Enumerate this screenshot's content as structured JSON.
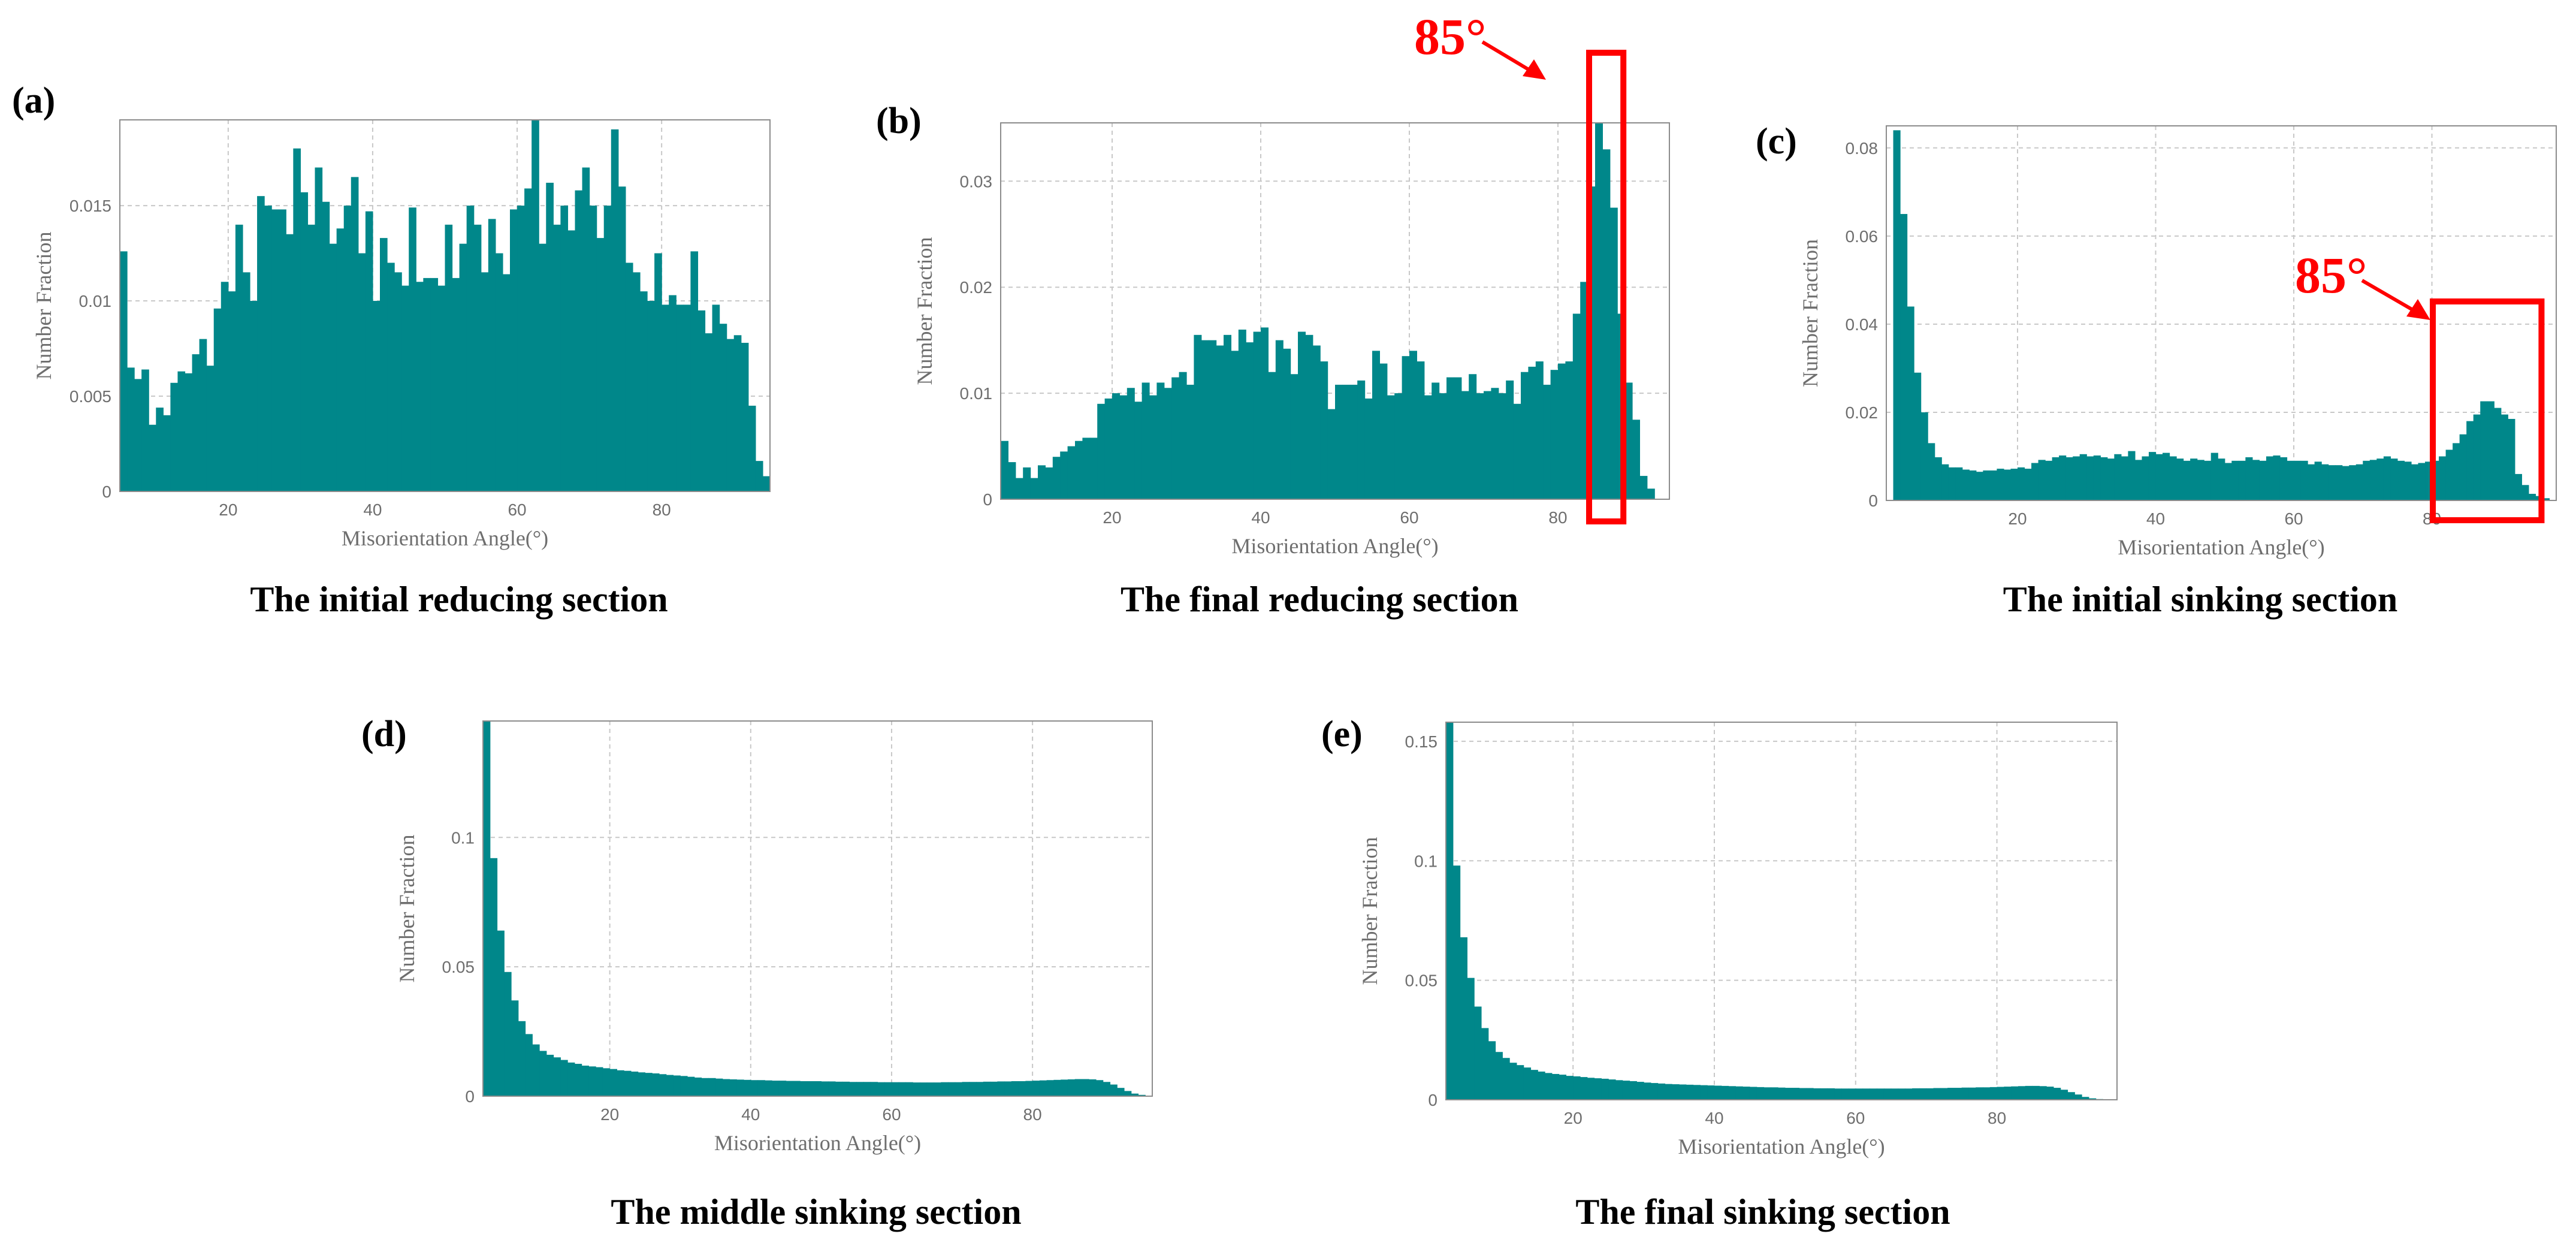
{
  "figure": {
    "panels": [
      {
        "letter": "(a)",
        "caption": "The initial reducing section"
      },
      {
        "letter": "(b)",
        "caption": "The final reducing section",
        "annotation": "85°"
      },
      {
        "letter": "(c)",
        "caption": "The initial sinking section",
        "annotation": "85°"
      },
      {
        "letter": "(d)",
        "caption": "The middle sinking section"
      },
      {
        "letter": "(e)",
        "caption": "The final sinking section"
      }
    ]
  },
  "colors": {
    "bar": "#00878A",
    "highlight": "#FF0000",
    "grid": "#C8C8C8",
    "axis_text": "#6E6E6E"
  },
  "chart_data": [
    {
      "type": "bar",
      "xlabel": "Misorientation Angle(°)",
      "ylabel": "Number Fraction",
      "xlim": [
        5,
        95
      ],
      "ylim": [
        0,
        0.0195
      ],
      "xticks": [
        20,
        40,
        60,
        80
      ],
      "xtick_labels": [
        "20",
        "40",
        "60",
        "80"
      ],
      "yticks": [
        0,
        0.005,
        0.01,
        0.015
      ],
      "ytick_labels": [
        "0",
        "0.005",
        "0.01",
        "0.015"
      ],
      "grid": true,
      "x": [
        5,
        6,
        7,
        8,
        9,
        10,
        11,
        12,
        13,
        14,
        15,
        16,
        17,
        18,
        19,
        20,
        21,
        22,
        23,
        24,
        25,
        26,
        27,
        28,
        29,
        30,
        31,
        32,
        33,
        34,
        35,
        36,
        37,
        38,
        39,
        40,
        41,
        42,
        43,
        44,
        45,
        46,
        47,
        48,
        49,
        50,
        51,
        52,
        53,
        54,
        55,
        56,
        57,
        58,
        59,
        60,
        61,
        62,
        63,
        64,
        65,
        66,
        67,
        68,
        69,
        70,
        71,
        72,
        73,
        74,
        75,
        76,
        77,
        78,
        79,
        80,
        81,
        82,
        83,
        84,
        85,
        86,
        87,
        88,
        89,
        90,
        91,
        92,
        93,
        94
      ],
      "values": [
        0.0126,
        0.0065,
        0.0059,
        0.0064,
        0.0035,
        0.0044,
        0.004,
        0.0057,
        0.0063,
        0.0062,
        0.0072,
        0.008,
        0.0066,
        0.0096,
        0.011,
        0.0105,
        0.014,
        0.0115,
        0.01,
        0.0155,
        0.015,
        0.0148,
        0.0148,
        0.0135,
        0.018,
        0.0157,
        0.014,
        0.017,
        0.0152,
        0.013,
        0.0138,
        0.015,
        0.0165,
        0.0125,
        0.0147,
        0.01,
        0.0133,
        0.012,
        0.0115,
        0.0108,
        0.0149,
        0.011,
        0.0112,
        0.0112,
        0.0108,
        0.014,
        0.0112,
        0.013,
        0.015,
        0.014,
        0.0115,
        0.0143,
        0.0125,
        0.0114,
        0.0148,
        0.015,
        0.0159,
        0.0195,
        0.013,
        0.0162,
        0.014,
        0.015,
        0.0137,
        0.0158,
        0.017,
        0.015,
        0.0133,
        0.015,
        0.019,
        0.016,
        0.012,
        0.0115,
        0.0105,
        0.01,
        0.0125,
        0.0098,
        0.0103,
        0.0098,
        0.0098,
        0.0126,
        0.0095,
        0.0083,
        0.0098,
        0.0088,
        0.008,
        0.0082,
        0.0078,
        0.0045,
        0.0016,
        0.0008
      ]
    },
    {
      "type": "bar",
      "xlabel": "Misorientation Angle(°)",
      "ylabel": "Number Fraction",
      "xlim": [
        5,
        95
      ],
      "ylim": [
        0,
        0.0355
      ],
      "xticks": [
        20,
        40,
        60,
        80
      ],
      "xtick_labels": [
        "20",
        "40",
        "60",
        "80"
      ],
      "yticks": [
        0,
        0.01,
        0.02,
        0.03
      ],
      "ytick_labels": [
        "0",
        "0.01",
        "0.02",
        "0.03"
      ],
      "grid": true,
      "highlight_x_range": [
        85,
        87
      ],
      "x": [
        5,
        6,
        7,
        8,
        9,
        10,
        11,
        12,
        13,
        14,
        15,
        16,
        17,
        18,
        19,
        20,
        21,
        22,
        23,
        24,
        25,
        26,
        27,
        28,
        29,
        30,
        31,
        32,
        33,
        34,
        35,
        36,
        37,
        38,
        39,
        40,
        41,
        42,
        43,
        44,
        45,
        46,
        47,
        48,
        49,
        50,
        51,
        52,
        53,
        54,
        55,
        56,
        57,
        58,
        59,
        60,
        61,
        62,
        63,
        64,
        65,
        66,
        67,
        68,
        69,
        70,
        71,
        72,
        73,
        74,
        75,
        76,
        77,
        78,
        79,
        80,
        81,
        82,
        83,
        84,
        85,
        86,
        87,
        88,
        89,
        90,
        91,
        92,
        93,
        94
      ],
      "values": [
        0.0055,
        0.0035,
        0.002,
        0.003,
        0.002,
        0.0032,
        0.003,
        0.004,
        0.0045,
        0.005,
        0.0055,
        0.0058,
        0.0058,
        0.009,
        0.0095,
        0.01,
        0.0098,
        0.0105,
        0.0092,
        0.011,
        0.0098,
        0.011,
        0.0105,
        0.0115,
        0.012,
        0.0108,
        0.0155,
        0.015,
        0.015,
        0.0145,
        0.0155,
        0.014,
        0.016,
        0.0148,
        0.0158,
        0.0162,
        0.012,
        0.015,
        0.0142,
        0.0118,
        0.0158,
        0.0155,
        0.0145,
        0.013,
        0.0085,
        0.0108,
        0.0108,
        0.0108,
        0.0112,
        0.0095,
        0.014,
        0.0128,
        0.0098,
        0.01,
        0.0135,
        0.014,
        0.013,
        0.0098,
        0.011,
        0.01,
        0.0115,
        0.0115,
        0.0102,
        0.0118,
        0.01,
        0.0102,
        0.0105,
        0.01,
        0.0112,
        0.009,
        0.012,
        0.0125,
        0.013,
        0.0108,
        0.0122,
        0.0128,
        0.013,
        0.0175,
        0.0205,
        0.0295,
        0.0355,
        0.033,
        0.0275,
        0.0175,
        0.011,
        0.0075,
        0.0022,
        0.001,
        0,
        0
      ]
    },
    {
      "type": "bar",
      "xlabel": "Misorientation Angle(°)",
      "ylabel": "Number Fraction",
      "xlim": [
        1,
        98
      ],
      "ylim": [
        0,
        0.085
      ],
      "xticks": [
        20,
        40,
        60,
        80
      ],
      "xtick_labels": [
        "20",
        "40",
        "60",
        "80"
      ],
      "yticks": [
        0,
        0.02,
        0.04,
        0.06,
        0.08
      ],
      "ytick_labels": [
        "0",
        "0.02",
        "0.04",
        "0.06",
        "0.08"
      ],
      "grid": true,
      "highlight_x_range": [
        81,
        94
      ],
      "x": [
        2,
        3,
        4,
        5,
        6,
        7,
        8,
        9,
        10,
        11,
        12,
        13,
        14,
        15,
        16,
        17,
        18,
        19,
        20,
        21,
        22,
        23,
        24,
        25,
        26,
        27,
        28,
        29,
        30,
        31,
        32,
        33,
        34,
        35,
        36,
        37,
        38,
        39,
        40,
        41,
        42,
        43,
        44,
        45,
        46,
        47,
        48,
        49,
        50,
        51,
        52,
        53,
        54,
        55,
        56,
        57,
        58,
        59,
        60,
        61,
        62,
        63,
        64,
        65,
        66,
        67,
        68,
        69,
        70,
        71,
        72,
        73,
        74,
        75,
        76,
        77,
        78,
        79,
        80,
        81,
        82,
        83,
        84,
        85,
        86,
        87,
        88,
        89,
        90,
        91,
        92,
        93,
        94,
        95,
        96
      ],
      "values": [
        0.084,
        0.065,
        0.044,
        0.029,
        0.02,
        0.013,
        0.0098,
        0.0082,
        0.0075,
        0.0075,
        0.007,
        0.0068,
        0.0065,
        0.0068,
        0.0068,
        0.0072,
        0.007,
        0.0072,
        0.0075,
        0.0072,
        0.0085,
        0.0092,
        0.009,
        0.0098,
        0.0102,
        0.0098,
        0.01,
        0.0105,
        0.01,
        0.0102,
        0.0098,
        0.0095,
        0.0105,
        0.01,
        0.0112,
        0.0092,
        0.01,
        0.011,
        0.0105,
        0.0108,
        0.01,
        0.0095,
        0.009,
        0.0095,
        0.0092,
        0.009,
        0.0108,
        0.0095,
        0.0085,
        0.009,
        0.009,
        0.0098,
        0.0092,
        0.009,
        0.01,
        0.0102,
        0.0098,
        0.009,
        0.009,
        0.009,
        0.0082,
        0.0088,
        0.0082,
        0.008,
        0.008,
        0.0078,
        0.008,
        0.0082,
        0.009,
        0.0092,
        0.0095,
        0.01,
        0.0095,
        0.009,
        0.0088,
        0.0082,
        0.0085,
        0.0088,
        0.009,
        0.01,
        0.0115,
        0.013,
        0.015,
        0.018,
        0.0195,
        0.0225,
        0.0225,
        0.021,
        0.0195,
        0.0185,
        0.006,
        0.0035,
        0.0015,
        0.001,
        0.0005
      ]
    },
    {
      "type": "bar",
      "xlabel": "Misorientation Angle(°)",
      "ylabel": "Number Fraction",
      "xlim": [
        2,
        97
      ],
      "ylim": [
        0,
        0.145
      ],
      "xticks": [
        20,
        40,
        60,
        80
      ],
      "xtick_labels": [
        "20",
        "40",
        "60",
        "80"
      ],
      "yticks": [
        0,
        0.05,
        0.1
      ],
      "ytick_labels": [
        "0",
        "0.05",
        "0.1"
      ],
      "grid": true,
      "x": [
        2,
        3,
        4,
        5,
        6,
        7,
        8,
        9,
        10,
        11,
        12,
        13,
        14,
        15,
        16,
        17,
        18,
        19,
        20,
        21,
        22,
        23,
        24,
        25,
        26,
        27,
        28,
        29,
        30,
        31,
        32,
        33,
        34,
        35,
        36,
        37,
        38,
        39,
        40,
        41,
        42,
        43,
        44,
        45,
        46,
        47,
        48,
        49,
        50,
        51,
        52,
        53,
        54,
        55,
        56,
        57,
        58,
        59,
        60,
        61,
        62,
        63,
        64,
        65,
        66,
        67,
        68,
        69,
        70,
        71,
        72,
        73,
        74,
        75,
        76,
        77,
        78,
        79,
        80,
        81,
        82,
        83,
        84,
        85,
        86,
        87,
        88,
        89,
        90,
        91,
        92,
        93,
        94,
        95
      ],
      "values": [
        0.145,
        0.092,
        0.064,
        0.048,
        0.037,
        0.029,
        0.024,
        0.02,
        0.0175,
        0.016,
        0.015,
        0.014,
        0.013,
        0.0125,
        0.0118,
        0.0115,
        0.0112,
        0.0108,
        0.0105,
        0.01,
        0.0098,
        0.0095,
        0.0092,
        0.009,
        0.0088,
        0.0085,
        0.0082,
        0.008,
        0.0078,
        0.0075,
        0.0072,
        0.007,
        0.007,
        0.0068,
        0.0066,
        0.0065,
        0.0064,
        0.0063,
        0.0062,
        0.0062,
        0.0061,
        0.006,
        0.006,
        0.0059,
        0.0059,
        0.0058,
        0.0058,
        0.0058,
        0.0057,
        0.0057,
        0.0056,
        0.0056,
        0.0055,
        0.0055,
        0.0055,
        0.0055,
        0.0054,
        0.0054,
        0.0054,
        0.0054,
        0.0054,
        0.0053,
        0.0053,
        0.0053,
        0.0053,
        0.0054,
        0.0054,
        0.0054,
        0.0055,
        0.0055,
        0.0055,
        0.0056,
        0.0056,
        0.0057,
        0.0057,
        0.0058,
        0.0058,
        0.0059,
        0.006,
        0.0061,
        0.0062,
        0.0063,
        0.0064,
        0.0065,
        0.0066,
        0.0066,
        0.0065,
        0.0062,
        0.0055,
        0.0045,
        0.0032,
        0.002,
        0.001,
        0.0005
      ]
    },
    {
      "type": "bar",
      "xlabel": "Misorientation Angle(°)",
      "ylabel": "Number Fraction",
      "xlim": [
        2,
        97
      ],
      "ylim": [
        0,
        0.158
      ],
      "xticks": [
        20,
        40,
        60,
        80
      ],
      "xtick_labels": [
        "20",
        "40",
        "60",
        "80"
      ],
      "yticks": [
        0,
        0.05,
        0.1,
        0.15
      ],
      "ytick_labels": [
        "0",
        "0.05",
        "0.1",
        "0.15"
      ],
      "grid": true,
      "x": [
        2,
        3,
        4,
        5,
        6,
        7,
        8,
        9,
        10,
        11,
        12,
        13,
        14,
        15,
        16,
        17,
        18,
        19,
        20,
        21,
        22,
        23,
        24,
        25,
        26,
        27,
        28,
        29,
        30,
        31,
        32,
        33,
        34,
        35,
        36,
        37,
        38,
        39,
        40,
        41,
        42,
        43,
        44,
        45,
        46,
        47,
        48,
        49,
        50,
        51,
        52,
        53,
        54,
        55,
        56,
        57,
        58,
        59,
        60,
        61,
        62,
        63,
        64,
        65,
        66,
        67,
        68,
        69,
        70,
        71,
        72,
        73,
        74,
        75,
        76,
        77,
        78,
        79,
        80,
        81,
        82,
        83,
        84,
        85,
        86,
        87,
        88,
        89,
        90,
        91,
        92,
        93,
        94,
        95
      ],
      "values": [
        0.158,
        0.098,
        0.068,
        0.051,
        0.039,
        0.03,
        0.0245,
        0.02,
        0.0175,
        0.0155,
        0.0145,
        0.0135,
        0.0125,
        0.0118,
        0.0112,
        0.0108,
        0.0105,
        0.01,
        0.0098,
        0.0095,
        0.0092,
        0.009,
        0.0088,
        0.0085,
        0.0082,
        0.008,
        0.0078,
        0.0075,
        0.0072,
        0.007,
        0.0068,
        0.0066,
        0.0065,
        0.0064,
        0.0063,
        0.0062,
        0.0061,
        0.006,
        0.0059,
        0.0058,
        0.0057,
        0.0056,
        0.0055,
        0.0054,
        0.0053,
        0.0052,
        0.0052,
        0.0051,
        0.005,
        0.005,
        0.0049,
        0.0049,
        0.0048,
        0.0048,
        0.0048,
        0.0047,
        0.0047,
        0.0047,
        0.0047,
        0.0047,
        0.0047,
        0.0047,
        0.0047,
        0.0047,
        0.0047,
        0.0047,
        0.0048,
        0.0048,
        0.0048,
        0.0049,
        0.0049,
        0.005,
        0.005,
        0.0051,
        0.0051,
        0.0052,
        0.0052,
        0.0053,
        0.0054,
        0.0055,
        0.0056,
        0.0057,
        0.0058,
        0.0058,
        0.0057,
        0.0055,
        0.005,
        0.0042,
        0.0032,
        0.0022,
        0.0012,
        0.0006,
        0.0003,
        0.0001
      ]
    }
  ]
}
